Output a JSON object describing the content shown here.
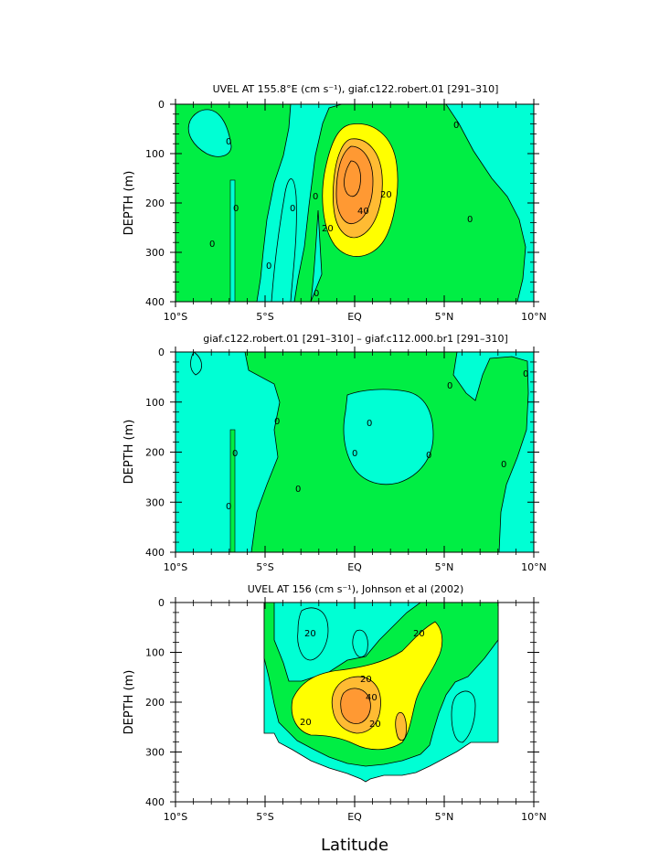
{
  "figure": {
    "xlabel": "Latitude"
  },
  "colors": {
    "cyan": "#00ffd4",
    "green": "#00ee44",
    "yellow": "#ffff00",
    "gold": "#ffbb33",
    "orange": "#ff9933",
    "line": "#000000"
  },
  "chart_data": [
    {
      "type": "contour",
      "title": "UVEL AT 155.8°E (cm s⁻¹), giaf.c122.robert.01 [291–310]",
      "xlabel": "",
      "ylabel": "DEPTH (m)",
      "xlim": [
        -10,
        10
      ],
      "ylim": [
        400,
        0
      ],
      "xticks": [
        "10°S",
        "5°S",
        "EQ",
        "5°N",
        "10°N"
      ],
      "yticks": [
        "0",
        "100",
        "200",
        "300",
        "400"
      ],
      "contour_labels": [
        "0",
        "0",
        "0",
        "0",
        "0",
        "0",
        "0",
        "0",
        "20",
        "20",
        "40"
      ],
      "features": [
        {
          "name": "equatorial undercurrent core",
          "lat": 0,
          "depth": 180,
          "max_speed": 50
        }
      ]
    },
    {
      "type": "contour",
      "title": "giaf.c122.robert.01 [291–310] – giaf.c112.000.br1 [291–310]",
      "xlabel": "",
      "ylabel": "DEPTH (m)",
      "xlim": [
        -10,
        10
      ],
      "ylim": [
        400,
        0
      ],
      "xticks": [
        "10°S",
        "5°S",
        "EQ",
        "5°N",
        "10°N"
      ],
      "yticks": [
        "0",
        "100",
        "200",
        "300",
        "400"
      ],
      "contour_labels": [
        "0",
        "0",
        "0",
        "0",
        "0",
        "0",
        "0",
        "0",
        "0",
        "0",
        "0",
        "0"
      ]
    },
    {
      "type": "contour",
      "title": "UVEL AT 156 (cm s⁻¹), Johnson et al (2002)",
      "xlabel": "Latitude",
      "ylabel": "DEPTH (m)",
      "xlim": [
        -10,
        10
      ],
      "ylim": [
        400,
        0
      ],
      "xticks": [
        "10°S",
        "5°S",
        "EQ",
        "5°N",
        "10°N"
      ],
      "yticks": [
        "0",
        "100",
        "200",
        "300",
        "400"
      ],
      "contour_labels": [
        "20",
        "20",
        "20",
        "20",
        "20",
        "40"
      ],
      "features": [
        {
          "name": "equatorial undercurrent core",
          "lat": 0,
          "depth": 200,
          "max_speed": 50
        }
      ]
    }
  ]
}
